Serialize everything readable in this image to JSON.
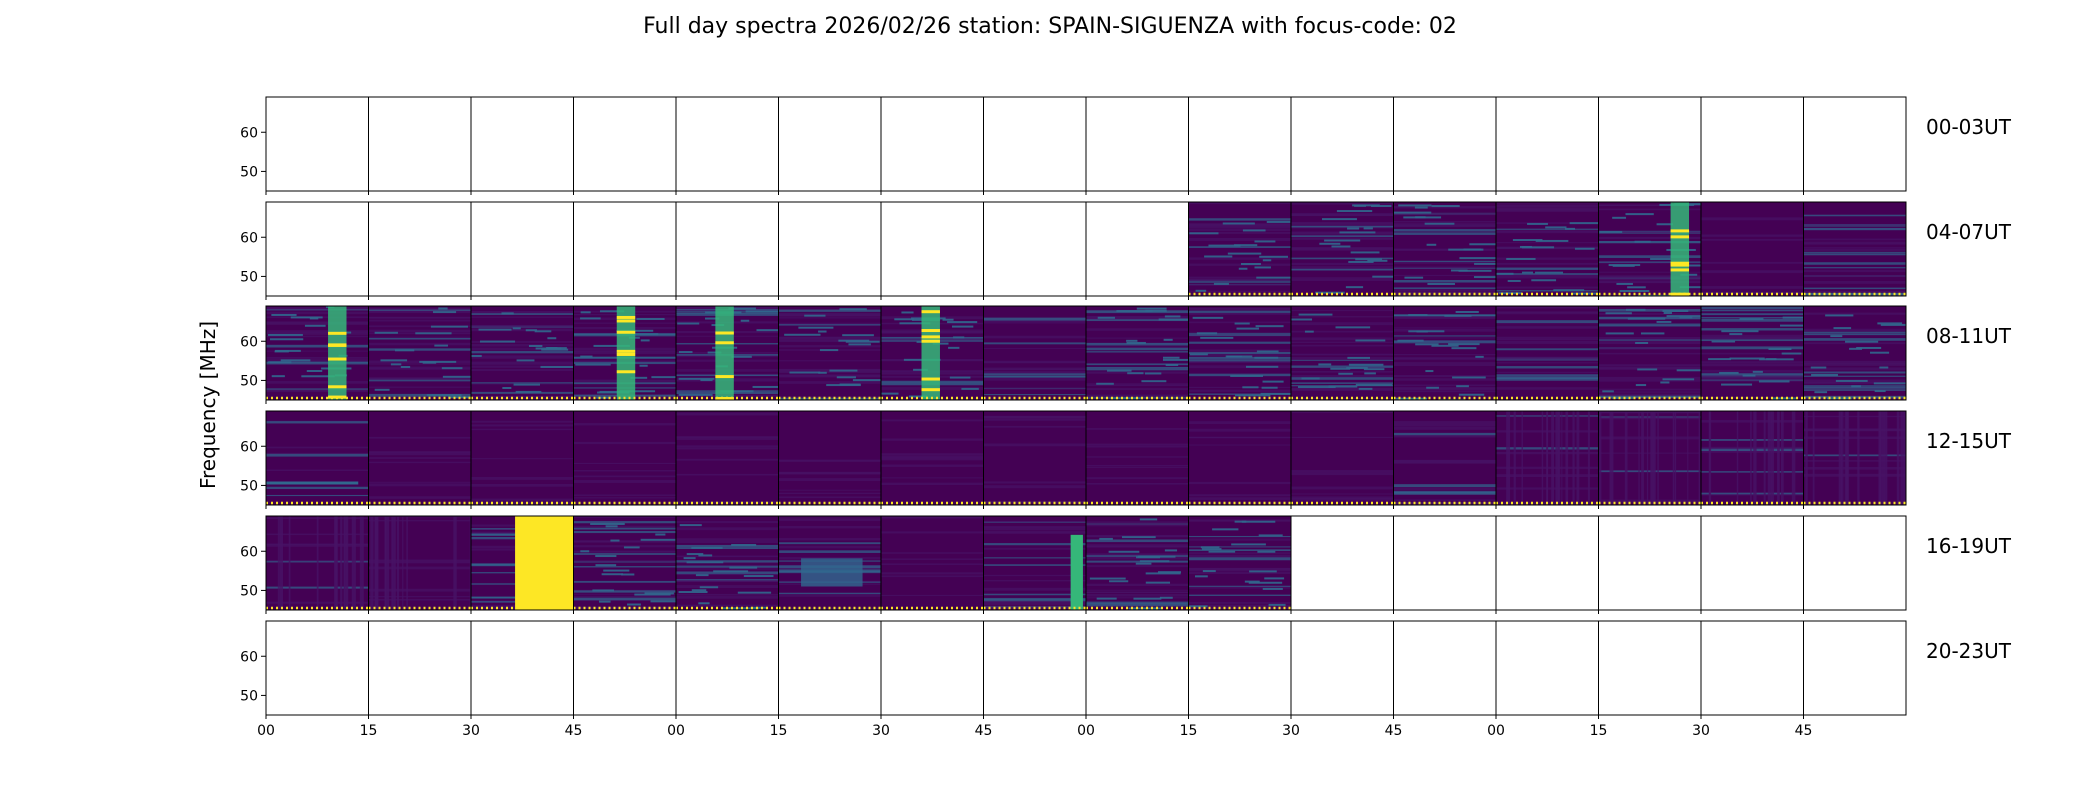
{
  "chart_data": {
    "type": "heatmap",
    "title": "Full day spectra 2026/02/26 station: SPAIN-SIGUENZA with focus-code: 02",
    "ylabel": "Frequency [MHz]",
    "xlabel": "",
    "y_ticks": [
      60,
      50
    ],
    "x_ticks": [
      "00",
      "15",
      "30",
      "45",
      "00",
      "15",
      "30",
      "45",
      "00",
      "15",
      "30",
      "45",
      "00",
      "15",
      "30",
      "45"
    ],
    "rows": [
      {
        "label": "00-03UT",
        "panels": [
          0,
          0,
          0,
          0,
          0,
          0,
          0,
          0,
          0,
          0,
          0,
          0,
          0,
          0,
          0,
          0
        ]
      },
      {
        "label": "04-07UT",
        "panels": [
          0,
          0,
          0,
          0,
          0,
          0,
          0,
          0,
          0,
          "busy",
          "busy",
          "busy",
          "striped",
          "burst",
          "dark",
          "plain"
        ]
      },
      {
        "label": "08-11UT",
        "panels": [
          "burst",
          "striped",
          "striped",
          "burst",
          "burst",
          "striped",
          "burst",
          "plain",
          "striped",
          "striped",
          "striped",
          "striped",
          "plain",
          "striped",
          "striped",
          "striped"
        ]
      },
      {
        "label": "12-15UT",
        "panels": [
          "weak",
          "dark",
          "dark",
          "dark",
          "dark",
          "dark",
          "dark",
          "dark",
          "dark",
          "dark",
          "dark",
          "plain",
          "vstripe",
          "vstripe",
          "vstripe",
          "vstripe"
        ]
      },
      {
        "label": "16-19UT",
        "panels": [
          "vstripe",
          "vstripe",
          "saturated",
          "striped",
          "striped",
          "blocks",
          "dark",
          "edge",
          "striped",
          "striped",
          0,
          0,
          0,
          0,
          0,
          0
        ]
      },
      {
        "label": "20-23UT",
        "panels": [
          0,
          0,
          0,
          0,
          0,
          0,
          0,
          0,
          0,
          0,
          0,
          0,
          0,
          0,
          0,
          0
        ]
      }
    ],
    "colormap": "viridis",
    "y_range": [
      45,
      69
    ],
    "colors": {
      "low": "#440154",
      "low2": "#471365",
      "mid": "#31688e",
      "high": "#35b779",
      "max": "#fde725"
    }
  }
}
